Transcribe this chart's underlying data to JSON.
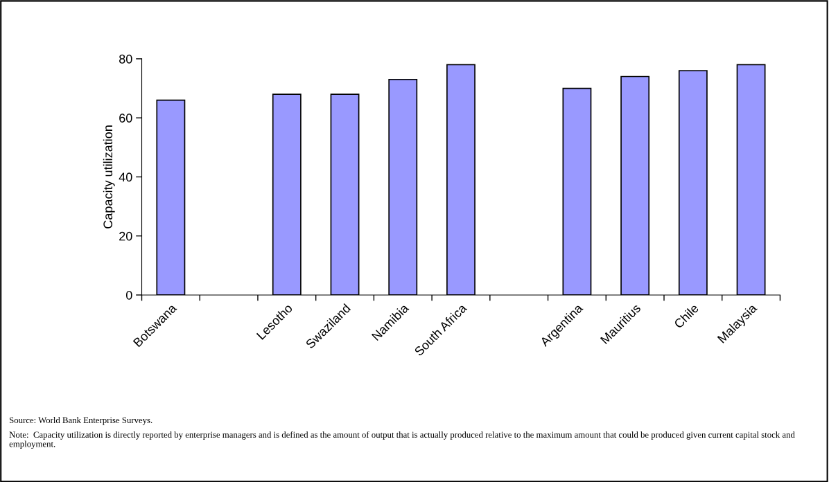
{
  "chart_data": {
    "type": "bar",
    "ylabel": "Capacity utilization",
    "categories": [
      "Botswana",
      null,
      "Lesotho",
      "Swaziland",
      "Namibia",
      "South Africa",
      null,
      "Argentina",
      "Mauritius",
      "Chile",
      "Malaysia"
    ],
    "values": [
      66,
      null,
      68,
      68,
      73,
      78,
      null,
      70,
      74,
      76,
      78
    ],
    "color": "#9999ff",
    "ylim": [
      0,
      80
    ],
    "yticks": [
      0,
      20,
      40,
      60,
      80
    ],
    "grid": false,
    "legend": false,
    "annotations": [
      "Source: World Bank Enterprise Surveys.",
      "Note:  Capacity utilization is directly reported by enterprise managers and is defined as the amount of output that is actually produced relative to the maximum amount that could be produced given current capital stock and employment."
    ]
  }
}
